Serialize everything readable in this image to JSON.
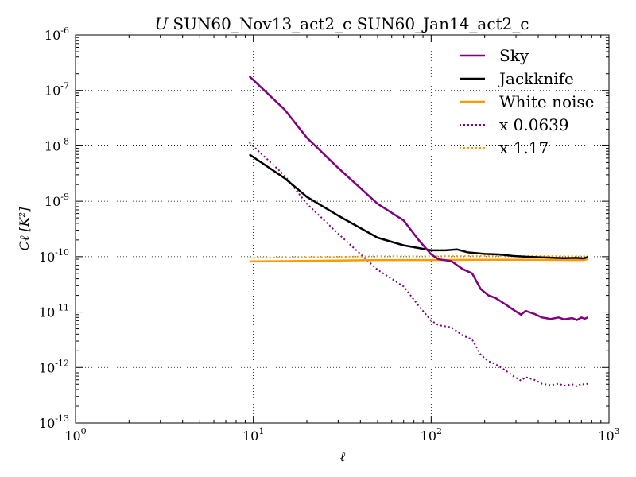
{
  "chart_data": {
    "type": "line",
    "title_italic": "U",
    "title_text": "SUN60_Nov13_act2_c SUN60_Jan14_act2_c",
    "xlabel": "ℓ",
    "ylabel": "Cℓ [K²]",
    "xscale": "log",
    "yscale": "log",
    "xlim": [
      1,
      1000
    ],
    "ylim": [
      1e-13,
      1e-06
    ],
    "grid": true,
    "legend_position": "top-right",
    "x_ticks": [
      {
        "value": 1,
        "base": "10",
        "exp": "0"
      },
      {
        "value": 10,
        "base": "10",
        "exp": "1"
      },
      {
        "value": 100,
        "base": "10",
        "exp": "2"
      },
      {
        "value": 1000,
        "base": "10",
        "exp": "3"
      }
    ],
    "y_ticks": [
      {
        "value": 1e-13,
        "base": "10",
        "exp": "-13"
      },
      {
        "value": 1e-12,
        "base": "10",
        "exp": "-12"
      },
      {
        "value": 1e-11,
        "base": "10",
        "exp": "-11"
      },
      {
        "value": 1e-10,
        "base": "10",
        "exp": "-10"
      },
      {
        "value": 1e-09,
        "base": "10",
        "exp": "-9"
      },
      {
        "value": 1e-08,
        "base": "10",
        "exp": "-8"
      },
      {
        "value": 1e-07,
        "base": "10",
        "exp": "-7"
      },
      {
        "value": 1e-06,
        "base": "10",
        "exp": "-6"
      }
    ],
    "series": [
      {
        "name": "Sky",
        "color": "#800080",
        "style": "solid",
        "points": [
          [
            9.5,
            1.8e-07
          ],
          [
            15,
            4.5e-08
          ],
          [
            20,
            1.4e-08
          ],
          [
            30,
            4e-09
          ],
          [
            50,
            9e-10
          ],
          [
            70,
            4.5e-10
          ],
          [
            85,
            2e-10
          ],
          [
            100,
            1.1e-10
          ],
          [
            110,
            9e-11
          ],
          [
            130,
            8.3e-11
          ],
          [
            150,
            6e-11
          ],
          [
            170,
            5e-11
          ],
          [
            190,
            2.6e-11
          ],
          [
            210,
            2e-11
          ],
          [
            230,
            1.8e-11
          ],
          [
            260,
            1.4e-11
          ],
          [
            290,
            1.1e-11
          ],
          [
            320,
            9e-12
          ],
          [
            340,
            1.05e-11
          ],
          [
            380,
            9.3e-12
          ],
          [
            420,
            8e-12
          ],
          [
            470,
            7.5e-12
          ],
          [
            520,
            8e-12
          ],
          [
            560,
            7.4e-12
          ],
          [
            620,
            7.8e-12
          ],
          [
            660,
            7.2e-12
          ],
          [
            700,
            8e-12
          ],
          [
            730,
            7.6e-12
          ],
          [
            760,
            8e-12
          ]
        ]
      },
      {
        "name": "Jackknife",
        "color": "#000000",
        "style": "solid",
        "points": [
          [
            9.5,
            7e-09
          ],
          [
            15,
            2.6e-09
          ],
          [
            20,
            1.2e-09
          ],
          [
            30,
            5.5e-10
          ],
          [
            50,
            2.2e-10
          ],
          [
            70,
            1.6e-10
          ],
          [
            100,
            1.3e-10
          ],
          [
            120,
            1.3e-10
          ],
          [
            140,
            1.35e-10
          ],
          [
            160,
            1.2e-10
          ],
          [
            200,
            1.12e-10
          ],
          [
            240,
            1.1e-10
          ],
          [
            290,
            1.03e-10
          ],
          [
            340,
            1e-10
          ],
          [
            400,
            9.8e-11
          ],
          [
            470,
            9.6e-11
          ],
          [
            560,
            9.4e-11
          ],
          [
            650,
            9.5e-11
          ],
          [
            720,
            9.3e-11
          ],
          [
            760,
            9.9e-11
          ]
        ]
      },
      {
        "name": "White noise",
        "color": "#FF9900",
        "style": "solid",
        "points": [
          [
            9.5,
            8.2e-11
          ],
          [
            15,
            8.3e-11
          ],
          [
            30,
            8.5e-11
          ],
          [
            50,
            8.7e-11
          ],
          [
            100,
            8.7e-11
          ],
          [
            200,
            8.8e-11
          ],
          [
            400,
            8.8e-11
          ],
          [
            600,
            8.7e-11
          ],
          [
            720,
            8.7e-11
          ],
          [
            760,
            9e-11
          ]
        ]
      },
      {
        "name": "x 0.0639",
        "color": "#800080",
        "style": "dotted",
        "points": [
          [
            9.5,
            1.15e-08
          ],
          [
            15,
            2.9e-09
          ],
          [
            20,
            9e-10
          ],
          [
            30,
            2.6e-10
          ],
          [
            50,
            5.8e-11
          ],
          [
            70,
            2.9e-11
          ],
          [
            85,
            1.3e-11
          ],
          [
            100,
            7e-12
          ],
          [
            110,
            5.8e-12
          ],
          [
            130,
            5.3e-12
          ],
          [
            150,
            3.8e-12
          ],
          [
            170,
            3.2e-12
          ],
          [
            190,
            1.7e-12
          ],
          [
            210,
            1.3e-12
          ],
          [
            230,
            1.15e-12
          ],
          [
            260,
            9e-13
          ],
          [
            290,
            7e-13
          ],
          [
            320,
            5.8e-13
          ],
          [
            340,
            6.7e-13
          ],
          [
            380,
            6e-13
          ],
          [
            420,
            5.1e-13
          ],
          [
            470,
            4.8e-13
          ],
          [
            520,
            5.1e-13
          ],
          [
            560,
            4.7e-13
          ],
          [
            620,
            5e-13
          ],
          [
            660,
            4.6e-13
          ],
          [
            700,
            5.1e-13
          ],
          [
            730,
            4.9e-13
          ],
          [
            760,
            5.1e-13
          ]
        ]
      },
      {
        "name": "x 1.17",
        "color": "#FF9900",
        "style": "dotted",
        "points": [
          [
            9.5,
            9.6e-11
          ],
          [
            15,
            9.7e-11
          ],
          [
            30,
            9.9e-11
          ],
          [
            50,
            1.02e-10
          ],
          [
            100,
            1.02e-10
          ],
          [
            200,
            1.03e-10
          ],
          [
            400,
            1.03e-10
          ],
          [
            600,
            1.02e-10
          ],
          [
            720,
            1.02e-10
          ],
          [
            760,
            1.05e-10
          ]
        ]
      }
    ]
  }
}
